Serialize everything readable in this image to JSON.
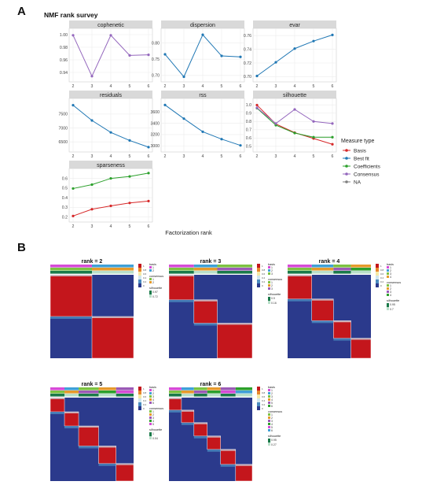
{
  "panel_a": {
    "letter": "A",
    "title": "NMF rank survey",
    "xlabel": "Factorization rank",
    "legend": {
      "title": "Measure type",
      "items": [
        {
          "label": "Basis",
          "color": "#d62728"
        },
        {
          "label": "Best fit",
          "color": "#1f77b4"
        },
        {
          "label": "Coefficients",
          "color": "#2ca02c"
        },
        {
          "label": "Consensus",
          "color": "#9467bd"
        },
        {
          "label": "NA",
          "color": "#7f7f7f"
        }
      ]
    }
  },
  "panel_b": {
    "letter": "B",
    "consensus_colors": [
      "#c4161c",
      "#e8862b",
      "#f5e9a6",
      "#cfe6ee",
      "#4b8bbf",
      "#2b3a8c"
    ],
    "basis_colors": [
      "#d64bd6",
      "#3fa0d6",
      "#7cc242",
      "#e59a2b",
      "#9b59b6",
      "#2ca02c"
    ],
    "maps": [
      {
        "title": "rank =  2",
        "rank": 2,
        "basis_labels": [
          "1",
          "2"
        ],
        "consensus_labels": [
          "1",
          "2"
        ],
        "silhouette_labels": [
          "0.97",
          "0.72"
        ]
      },
      {
        "title": "rank =  3",
        "rank": 3,
        "basis_labels": [
          "1",
          "2",
          "3"
        ],
        "consensus_labels": [
          "1",
          "2",
          "3"
        ],
        "silhouette_labels": [
          "0.9",
          "0.16"
        ]
      },
      {
        "title": "rank =  4",
        "rank": 4,
        "basis_labels": [
          "1",
          "2",
          "3",
          "4"
        ],
        "consensus_labels": [
          "1",
          "2",
          "3",
          "4"
        ],
        "silhouette_labels": [
          "0.95",
          "0.7"
        ]
      },
      {
        "title": "rank =  5",
        "rank": 5,
        "basis_labels": [
          "1",
          "2",
          "3",
          "4",
          "5"
        ],
        "consensus_labels": [
          "1",
          "2",
          "3",
          "4",
          "5"
        ],
        "silhouette_labels": [
          "1",
          "0.04"
        ]
      },
      {
        "title": "rank =  6",
        "rank": 6,
        "basis_labels": [
          "1",
          "2",
          "3",
          "4",
          "5",
          "6"
        ],
        "consensus_labels": [
          "1",
          "2",
          "3",
          "4",
          "5",
          "6"
        ],
        "silhouette_labels": [
          "0.95",
          "0.27"
        ]
      }
    ],
    "legend_text": {
      "basis": "basis",
      "consensus": "consensus",
      "silhouette": "silhouette"
    },
    "scale_ticks": [
      "1",
      "0.8",
      "0.6",
      "0.4",
      "0.2",
      "0"
    ]
  },
  "chart_data": [
    {
      "type": "line",
      "facet": "cophenetic",
      "x": [
        2,
        3,
        4,
        5,
        6
      ],
      "xticks": [
        "2",
        "3",
        "4",
        "5",
        "6"
      ],
      "ylim": [
        0.93,
        1.005
      ],
      "yticks": [
        0.94,
        0.96,
        0.98,
        1.0
      ],
      "ytick_labels": [
        "0.94",
        "0.96",
        "0.98",
        "1.00"
      ],
      "series": [
        {
          "name": "Consensus",
          "color": "#9467bd",
          "values": [
            0.999,
            0.934,
            0.999,
            0.967,
            0.968
          ]
        }
      ]
    },
    {
      "type": "line",
      "facet": "dispersion",
      "x": [
        2,
        3,
        4,
        5,
        6
      ],
      "xticks": [
        "2",
        "3",
        "4",
        "5",
        "6"
      ],
      "ylim": [
        0.69,
        0.835
      ],
      "yticks": [
        0.7,
        0.75,
        0.8
      ],
      "ytick_labels": [
        "0.70",
        "0.75",
        "0.80"
      ],
      "series": [
        {
          "name": "Best fit",
          "color": "#1f77b4",
          "values": [
            0.765,
            0.696,
            0.825,
            0.76,
            0.757
          ]
        }
      ]
    },
    {
      "type": "line",
      "facet": "evar",
      "x": [
        2,
        3,
        4,
        5,
        6
      ],
      "xticks": [
        "2",
        "3",
        "4",
        "5",
        "6"
      ],
      "ylim": [
        0.697,
        0.766
      ],
      "yticks": [
        0.7,
        0.72,
        0.74,
        0.76
      ],
      "ytick_labels": [
        "0.70",
        "0.72",
        "0.74",
        "0.76"
      ],
      "series": [
        {
          "name": "Best fit",
          "color": "#1f77b4",
          "values": [
            0.701,
            0.721,
            0.741,
            0.752,
            0.761
          ]
        }
      ]
    },
    {
      "type": "line",
      "facet": "residuals",
      "x": [
        2,
        3,
        4,
        5,
        6
      ],
      "xticks": [
        "2",
        "3",
        "4",
        "5",
        "6"
      ],
      "ylim": [
        6250,
        7950
      ],
      "yticks": [
        6500,
        7000,
        7500
      ],
      "ytick_labels": [
        "6500",
        "7000",
        "7500"
      ],
      "series": [
        {
          "name": "Best fit",
          "color": "#1f77b4",
          "values": [
            7820,
            7270,
            6840,
            6550,
            6310
          ]
        }
      ]
    },
    {
      "type": "line",
      "facet": "rss",
      "x": [
        2,
        3,
        4,
        5,
        6
      ],
      "xticks": [
        "2",
        "3",
        "4",
        "5",
        "6"
      ],
      "ylim": [
        2950,
        3780
      ],
      "yticks": [
        3000,
        3200,
        3400,
        3600
      ],
      "ytick_labels": [
        "3000",
        "3200",
        "3400",
        "3600"
      ],
      "series": [
        {
          "name": "Best fit",
          "color": "#1f77b4",
          "values": [
            3720,
            3480,
            3250,
            3120,
            3010
          ]
        }
      ]
    },
    {
      "type": "line",
      "facet": "silhouette",
      "x": [
        2,
        3,
        4,
        5,
        6
      ],
      "xticks": [
        "2",
        "3",
        "4",
        "5",
        "6"
      ],
      "ylim": [
        0.47,
        1.04
      ],
      "yticks": [
        0.5,
        0.6,
        0.7,
        0.8,
        0.9,
        1.0
      ],
      "ytick_labels": [
        "0.5",
        "0.6",
        "0.7",
        "0.8",
        "0.9",
        "1.0"
      ],
      "series": [
        {
          "name": "Basis",
          "color": "#d62728",
          "values": [
            0.998,
            0.77,
            0.665,
            0.595,
            0.525
          ]
        },
        {
          "name": "Coefficients",
          "color": "#2ca02c",
          "values": [
            0.96,
            0.755,
            0.66,
            0.61,
            0.61
          ]
        },
        {
          "name": "Consensus",
          "color": "#9467bd",
          "values": [
            0.965,
            0.775,
            0.945,
            0.8,
            0.775
          ]
        }
      ]
    },
    {
      "type": "line",
      "facet": "sparseness",
      "x": [
        2,
        3,
        4,
        5,
        6
      ],
      "xticks": [
        "2",
        "3",
        "4",
        "5",
        "6"
      ],
      "ylim": [
        0.18,
        0.67
      ],
      "yticks": [
        0.2,
        0.3,
        0.4,
        0.5,
        0.6
      ],
      "ytick_labels": [
        "0.2",
        "0.3",
        "0.4",
        "0.5",
        "0.6"
      ],
      "series": [
        {
          "name": "Basis",
          "color": "#d62728",
          "values": [
            0.21,
            0.28,
            0.315,
            0.345,
            0.365
          ]
        },
        {
          "name": "Coefficients",
          "color": "#2ca02c",
          "values": [
            0.495,
            0.535,
            0.6,
            0.62,
            0.655
          ]
        }
      ]
    }
  ]
}
